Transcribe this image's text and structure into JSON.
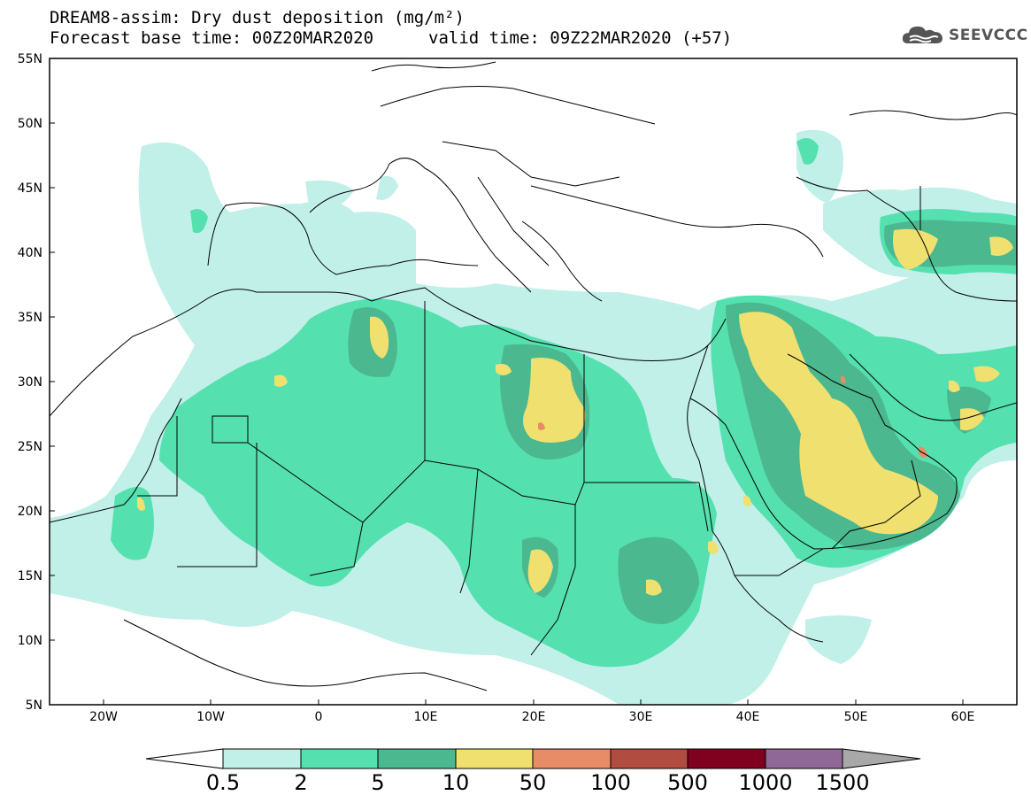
{
  "header": {
    "title_line1": "DREAM8-assim: Dry dust deposition (mg/m²)",
    "title_line2_left": "Forecast base time: 00Z20MAR2020",
    "title_line2_right": "valid time: 09Z22MAR2020 (+57)",
    "logo_text": "SEEVCCC",
    "logo_icon": "cloud-icon"
  },
  "map": {
    "lat_labels": [
      "55N",
      "50N",
      "45N",
      "40N",
      "35N",
      "30N",
      "25N",
      "20N",
      "15N",
      "10N",
      "5N"
    ],
    "lon_labels": [
      "20W",
      "10W",
      "0",
      "10E",
      "20E",
      "30E",
      "40E",
      "50E",
      "60E"
    ],
    "lon_range": [
      "25W",
      "65E"
    ],
    "lat_range": [
      "5N",
      "55N"
    ]
  },
  "colorbar": {
    "labels": [
      "0.5",
      "2",
      "5",
      "10",
      "50",
      "100",
      "500",
      "1000",
      "1500"
    ],
    "colors": [
      "#c0f0e8",
      "#55e0b0",
      "#4cb890",
      "#f0e070",
      "#e88c68",
      "#b04c40",
      "#800020",
      "#906898",
      "#a8a8a8"
    ],
    "under_color": "#ffffff"
  }
}
